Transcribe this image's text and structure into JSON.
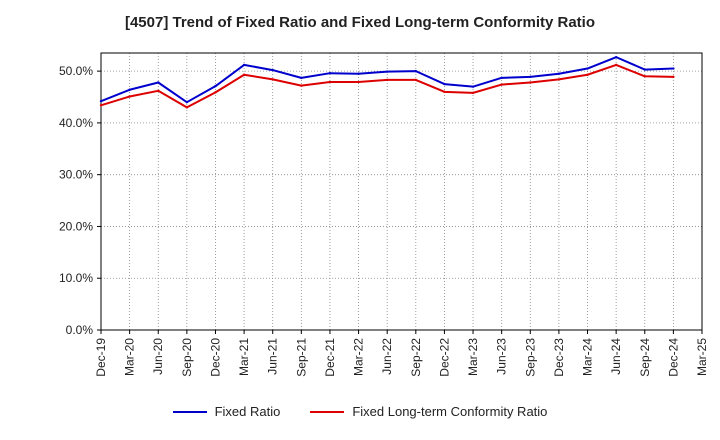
{
  "chart_data": {
    "type": "line",
    "title": "[4507]  Trend of Fixed Ratio and Fixed Long-term Conformity Ratio",
    "x": [
      "Dec-19",
      "Mar-20",
      "Jun-20",
      "Sep-20",
      "Dec-20",
      "Mar-21",
      "Jun-21",
      "Sep-21",
      "Dec-21",
      "Mar-22",
      "Jun-22",
      "Sep-22",
      "Dec-22",
      "Mar-23",
      "Jun-23",
      "Sep-23",
      "Dec-23",
      "Mar-24",
      "Jun-24",
      "Sep-24",
      "Dec-24",
      "Mar-25"
    ],
    "ylim": [
      0,
      53.5
    ],
    "yticks": [
      0,
      10,
      20,
      30,
      40,
      50
    ],
    "ytick_labels": [
      "0.0%",
      "10.0%",
      "20.0%",
      "30.0%",
      "40.0%",
      "50.0%"
    ],
    "grid": true,
    "legend_position": "bottom",
    "series": [
      {
        "name": "Fixed Ratio",
        "color": "#0000cc",
        "values": [
          44.2,
          46.4,
          47.8,
          44.0,
          47.1,
          51.2,
          50.2,
          48.7,
          49.6,
          49.5,
          49.9,
          50.0,
          47.5,
          47.0,
          48.7,
          48.9,
          49.5,
          50.5,
          52.7,
          50.3,
          50.5,
          null
        ]
      },
      {
        "name": "Fixed Long-term Conformity Ratio",
        "color": "#dd0000",
        "values": [
          43.4,
          45.1,
          46.2,
          43.0,
          45.9,
          49.3,
          48.4,
          47.2,
          47.9,
          47.9,
          48.3,
          48.3,
          46.0,
          45.8,
          47.4,
          47.8,
          48.4,
          49.3,
          51.2,
          49.0,
          48.9,
          null
        ]
      }
    ]
  }
}
